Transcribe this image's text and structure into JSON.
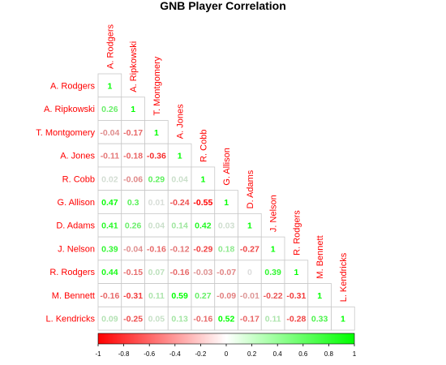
{
  "chart_data": {
    "type": "heatmap",
    "title": "GNB Player Correlation",
    "players": [
      "A. Rodgers",
      "A. Ripkowski",
      "T. Montgomery",
      "A. Jones",
      "R. Cobb",
      "G. Allison",
      "D. Adams",
      "J. Nelson",
      "R. Rodgers",
      "M. Bennett",
      "L. Kendricks"
    ],
    "matrix": [
      [
        1
      ],
      [
        0.26,
        1
      ],
      [
        -0.04,
        -0.17,
        1
      ],
      [
        -0.11,
        -0.18,
        -0.36,
        1
      ],
      [
        0.02,
        -0.06,
        0.29,
        0.04,
        1
      ],
      [
        0.47,
        0.3,
        0.01,
        -0.24,
        -0.55,
        1
      ],
      [
        0.41,
        0.26,
        0.04,
        0.14,
        0.42,
        0.03,
        1
      ],
      [
        0.39,
        -0.04,
        -0.16,
        -0.12,
        -0.29,
        0.18,
        -0.27,
        1
      ],
      [
        0.44,
        -0.15,
        0.07,
        -0.16,
        -0.03,
        -0.07,
        0,
        0.39,
        1
      ],
      [
        -0.16,
        -0.31,
        0.11,
        0.59,
        0.27,
        -0.09,
        -0.01,
        -0.22,
        -0.31,
        1
      ],
      [
        0.09,
        -0.25,
        0.05,
        0.13,
        -0.16,
        0.52,
        -0.17,
        0.11,
        -0.28,
        0.33,
        1
      ]
    ],
    "colorbar": {
      "range": [
        -1,
        1
      ],
      "ticks": [
        -1,
        -0.8,
        -0.6,
        -0.4,
        -0.2,
        0,
        0.2,
        0.4,
        0.6,
        0.8,
        1
      ],
      "tick_labels": [
        "-1",
        "-0.8",
        "-0.6",
        "-0.4",
        "-0.2",
        "0",
        "0.2",
        "0.4",
        "0.6",
        "0.8",
        "1"
      ],
      "low_color": "#ff0000",
      "mid_color": "#ffffff",
      "high_color": "#00ff00"
    },
    "label_color": "#ff0000"
  }
}
